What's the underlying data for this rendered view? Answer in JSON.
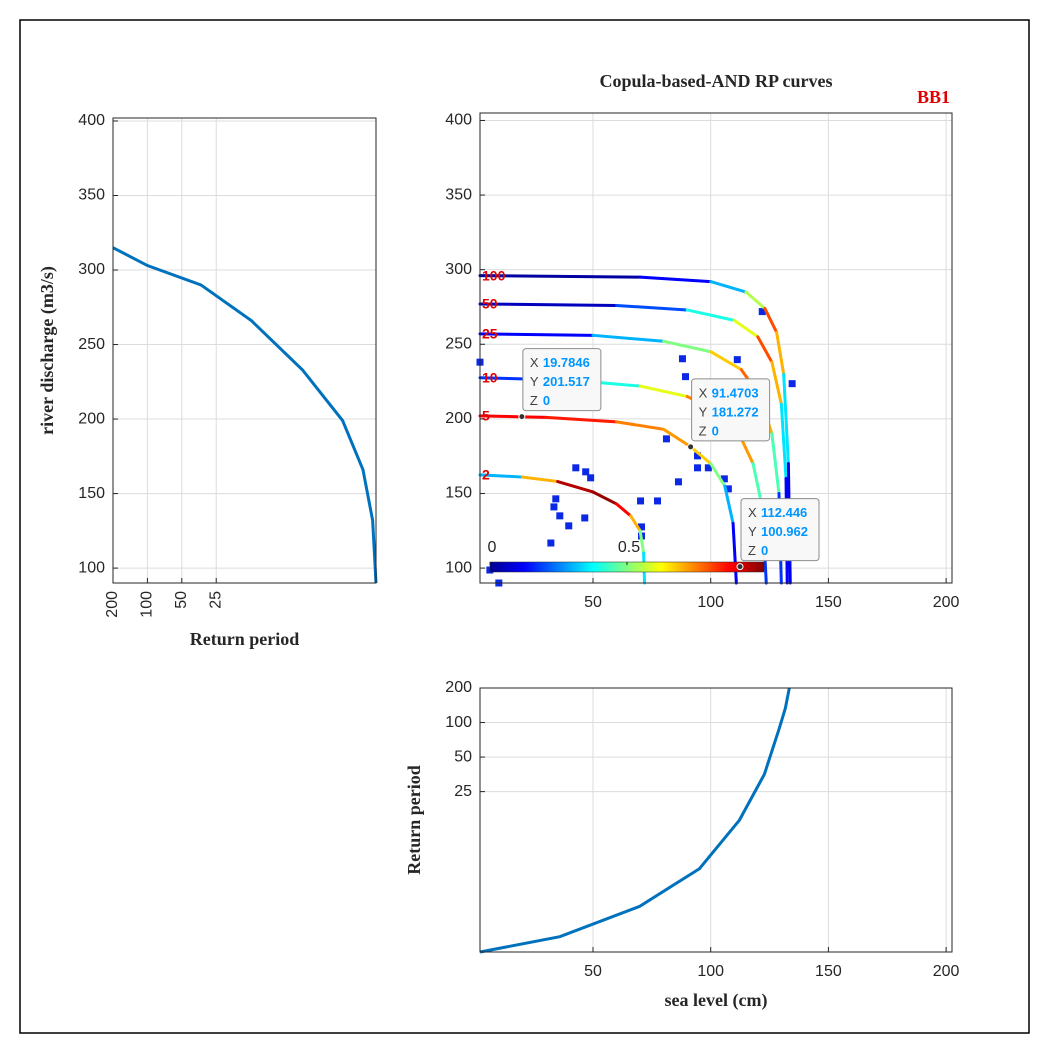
{
  "chart_data": [
    {
      "type": "line",
      "xlabel": "Return period",
      "ylabel": "river discharge (m3/s)",
      "xscale": "log",
      "xlim": [
        200,
        1
      ],
      "xticks": [
        200,
        100,
        50,
        25
      ],
      "xtick_rotation": 90,
      "ylim": [
        90,
        402
      ],
      "yticks": [
        100,
        150,
        200,
        250,
        300,
        350,
        400
      ],
      "grid": true,
      "series": [
        {
          "color": "#0072bd",
          "x": [
            200,
            100,
            34,
            12.3,
            4.4,
            1.96,
            1.3,
            1.07,
            1
          ],
          "y": [
            315,
            303,
            290,
            266,
            233,
            199,
            166,
            132,
            90
          ]
        }
      ]
    },
    {
      "type": "contour",
      "title": "Copula-based-AND RP curves",
      "annotation": "BB1",
      "xlim": [
        2,
        202.5
      ],
      "xticks": [
        50,
        100,
        150,
        200
      ],
      "ylim": [
        90,
        405
      ],
      "yticks": [
        100,
        150,
        200,
        250,
        300,
        350,
        400
      ],
      "grid": true,
      "colormap": "jet",
      "series": [
        {
          "name": "2",
          "x": [
            2,
            20,
            35,
            50,
            60,
            66,
            70,
            71.5,
            71.9
          ],
          "y": [
            162.5,
            161,
            158,
            151,
            143,
            135,
            125,
            110,
            90
          ],
          "z": [
            0.1,
            0.5,
            0.9,
            1.0,
            0.95,
            0.8,
            0.6,
            0.4,
            0.3
          ]
        },
        {
          "name": "5",
          "x": [
            2,
            30,
            60,
            80,
            91.5,
            100,
            106,
            109.5,
            110.9
          ],
          "y": [
            202,
            201,
            198,
            193,
            181.3,
            170,
            155,
            130,
            90
          ],
          "z": [
            0.85,
            0.9,
            0.8,
            0.7,
            0.75,
            0.6,
            0.4,
            0.2,
            0.05
          ]
        },
        {
          "name": "10",
          "x": [
            2,
            40,
            70,
            90,
            103,
            112,
            118,
            122,
            123.6
          ],
          "y": [
            227.6,
            226,
            222,
            215,
            205,
            190,
            170,
            140,
            90
          ],
          "z": [
            0.05,
            0.3,
            0.5,
            0.7,
            0.8,
            0.85,
            0.6,
            0.3,
            0.05
          ]
        },
        {
          "name": "25",
          "x": [
            2,
            50,
            80,
            100,
            113,
            121,
            126,
            129,
            130
          ],
          "y": [
            257,
            256,
            252,
            245,
            233,
            215,
            190,
            150,
            90
          ],
          "z": [
            0.05,
            0.2,
            0.4,
            0.6,
            0.75,
            0.8,
            0.6,
            0.3,
            0.05
          ]
        },
        {
          "name": "50",
          "x": [
            2,
            60,
            90,
            110,
            120,
            126,
            130,
            132,
            132.5
          ],
          "y": [
            277,
            276,
            273,
            266,
            255,
            238,
            210,
            160,
            90
          ],
          "z": [
            0.02,
            0.1,
            0.3,
            0.5,
            0.7,
            0.9,
            0.5,
            0.2,
            0.05
          ]
        },
        {
          "name": "100",
          "x": [
            2,
            70,
            100,
            115,
            123,
            128,
            131,
            133,
            133.8
          ],
          "y": [
            296,
            295,
            292,
            285,
            274,
            258,
            230,
            170,
            90
          ],
          "z": [
            0.02,
            0.05,
            0.2,
            0.4,
            0.7,
            0.9,
            0.5,
            0.2,
            0.02
          ]
        }
      ],
      "scatter": {
        "color": "#0a28e6",
        "x": [
          2,
          6.2,
          10,
          32.1,
          33.4,
          34.2,
          35.9,
          39.7,
          42.7,
          46.5,
          46.9,
          49.0,
          70.2,
          70.6,
          70.6,
          77.4,
          81.2,
          86.3,
          88.0,
          89.3,
          94.4,
          94.4,
          99.0,
          105.8,
          107.5,
          111.3,
          121.9,
          134.6
        ],
        "y": [
          238,
          98.7,
          90,
          116.8,
          141.0,
          146.4,
          135.0,
          128.3,
          167.2,
          133.6,
          164.5,
          160.5,
          145.0,
          127.6,
          121.5,
          145.0,
          186.6,
          157.8,
          240.3,
          228.3,
          175.2,
          167.2,
          167.2,
          159.8,
          153.1,
          239.7,
          271.9,
          223.6
        ]
      },
      "colorbar": {
        "clim": [
          0,
          1
        ],
        "ticks": [
          0,
          0.5
        ]
      },
      "datatip_labels": [
        "X",
        "Y",
        "Z"
      ],
      "datatips": [
        {
          "x": 19.7846,
          "y": 201.517,
          "z": 0
        },
        {
          "x": 91.4703,
          "y": 181.272,
          "z": 0
        },
        {
          "x": 112.446,
          "y": 100.962,
          "z": 0
        }
      ]
    },
    {
      "type": "line",
      "xlabel": "sea level (cm)",
      "ylabel": "Return period",
      "xlim": [
        2,
        202.5
      ],
      "xticks": [
        50,
        100,
        150,
        200
      ],
      "yscale": "log",
      "ylim": [
        1,
        200
      ],
      "yticks": [
        25,
        50,
        100,
        200
      ],
      "grid": true,
      "series": [
        {
          "color": "#0072bd",
          "x": [
            2,
            35.9,
            69.8,
            95.2,
            112.2,
            122.8,
            129.1,
            131.7,
            133.4
          ],
          "y": [
            1,
            1.36,
            2.5,
            5.32,
            14.1,
            35.4,
            88.6,
            133,
            200
          ]
        }
      ]
    }
  ]
}
